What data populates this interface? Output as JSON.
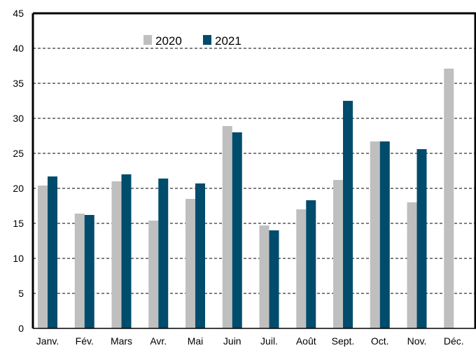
{
  "chart_data": {
    "type": "bar",
    "categories": [
      "Janv.",
      "Fév.",
      "Mars",
      "Avr.",
      "Mai",
      "Juin",
      "Juil.",
      "Août",
      "Sept.",
      "Oct.",
      "Nov.",
      "Déc."
    ],
    "series": [
      {
        "name": "2020",
        "color": "#bfbfbf",
        "values": [
          20.4,
          16.4,
          21.0,
          15.4,
          18.5,
          28.9,
          14.7,
          17.0,
          21.2,
          26.7,
          18.0,
          37.1
        ]
      },
      {
        "name": "2021",
        "color": "#004c6c",
        "values": [
          21.7,
          16.2,
          22.0,
          21.4,
          20.7,
          28.0,
          14.0,
          18.3,
          32.5,
          26.7,
          25.6,
          null
        ]
      }
    ],
    "ylim": [
      0,
      45
    ],
    "yticks": [
      "0",
      "5",
      "10",
      "15",
      "20",
      "25",
      "30",
      "35",
      "40",
      "45"
    ],
    "grid": true,
    "legend_position": "top-left"
  }
}
